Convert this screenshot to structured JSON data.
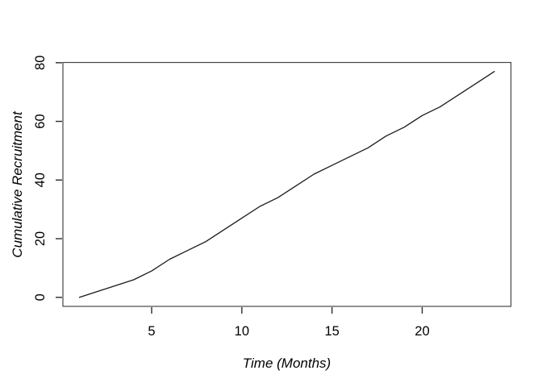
{
  "chart_data": {
    "type": "line",
    "title": "",
    "xlabel": "Time (Months)",
    "ylabel": "Cumulative Recruitment",
    "x": [
      1,
      2,
      3,
      4,
      5,
      6,
      7,
      8,
      9,
      10,
      11,
      12,
      13,
      14,
      15,
      16,
      17,
      18,
      19,
      20,
      21,
      22,
      23,
      24
    ],
    "series": [
      {
        "name": "Cumulative Recruitment",
        "values": [
          0,
          2,
          4,
          6,
          9,
          13,
          16,
          19,
          23,
          27,
          31,
          34,
          38,
          42,
          45,
          48,
          51,
          55,
          58,
          62,
          65,
          69,
          73,
          77
        ]
      }
    ],
    "xlim": [
      0.08,
      24.92
    ],
    "ylim": [
      -3.08,
      80.08
    ],
    "xticks": [
      5,
      10,
      15,
      20
    ],
    "yticks": [
      0,
      20,
      40,
      60,
      80
    ],
    "grid": false,
    "legend_position": "none",
    "line_color": "#1a1a1a",
    "box_color": "#454545",
    "background_color": "#ffffff"
  }
}
